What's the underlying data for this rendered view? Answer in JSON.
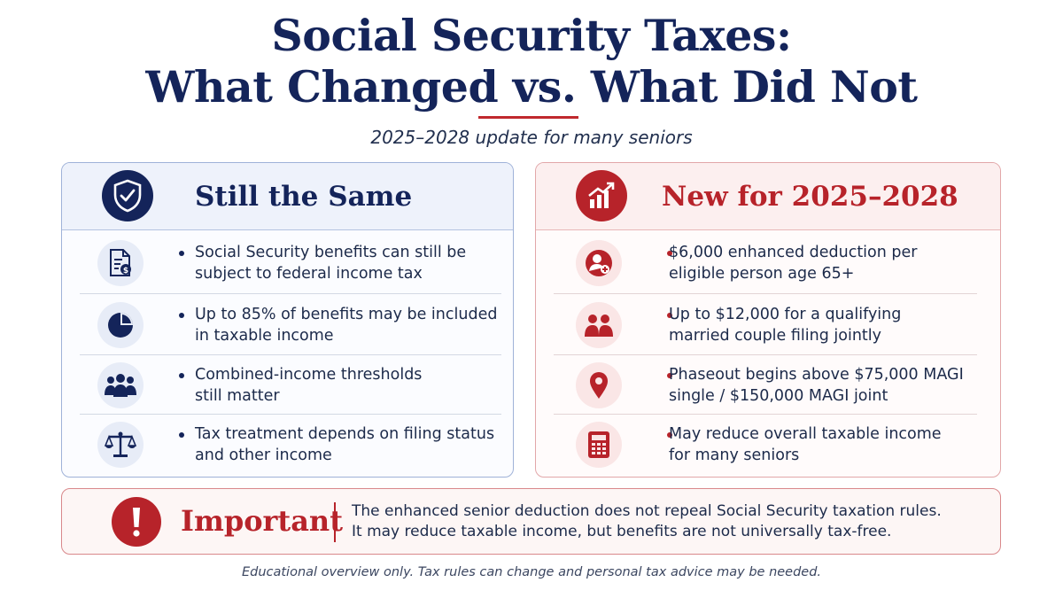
{
  "header": {
    "title_line1": "Social Security Taxes:",
    "title_line2": "What Changed vs. What Did Not",
    "subtitle": "2025–2028 update for many seniors"
  },
  "left_panel": {
    "title": "Still the Same",
    "icon": "shield-check-icon",
    "accent_color": "#14245a",
    "items": [
      {
        "icon": "document-dollar-icon",
        "line1": "Social Security benefits can still be",
        "line2": "subject to federal income tax"
      },
      {
        "icon": "pie-chart-icon",
        "line1": "Up to 85% of benefits may be included",
        "line2": "in taxable income"
      },
      {
        "icon": "people-group-icon",
        "line1": "Combined-income thresholds",
        "line2": "still matter"
      },
      {
        "icon": "scales-icon",
        "line1": "Tax treatment depends on filing status",
        "line2": "and other income"
      }
    ]
  },
  "right_panel": {
    "title": "New for 2025–2028",
    "icon": "growth-chart-icon",
    "accent_color": "#b7232a",
    "items": [
      {
        "icon": "person-plus-icon",
        "line1": "$6,000 enhanced deduction per",
        "line2": "eligible person age 65+"
      },
      {
        "icon": "couple-icon",
        "line1": "Up to $12,000 for a qualifying",
        "line2": "married couple filing jointly"
      },
      {
        "icon": "location-pin-icon",
        "line1": "Phaseout begins above $75,000 MAGI",
        "line2": "single / $150,000 MAGI joint"
      },
      {
        "icon": "calculator-icon",
        "line1": "May reduce overall taxable income",
        "line2": "for many seniors"
      }
    ]
  },
  "important": {
    "label": "Important",
    "line1": "The enhanced senior deduction does not repeal Social Security taxation rules.",
    "line2": "It may reduce taxable income, but benefits are not universally tax-free."
  },
  "footer": "Educational overview only. Tax rules can change and personal tax advice may be needed."
}
